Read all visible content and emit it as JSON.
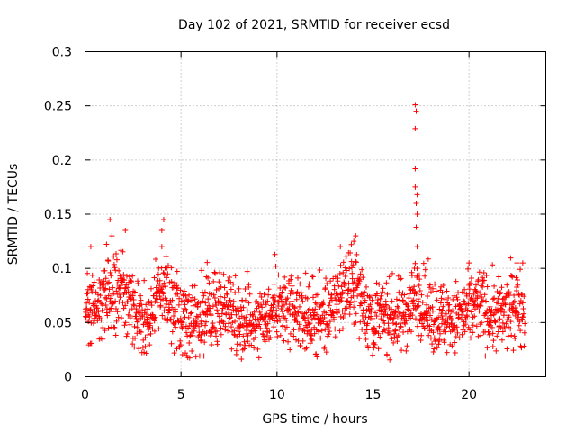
{
  "chart_data": {
    "type": "scatter",
    "title": "Day 102 of 2021, SRMTID for receiver ecsd",
    "xlabel": "GPS time / hours",
    "ylabel": "SRMTID / TECUs",
    "xlim": [
      0,
      24
    ],
    "ylim": [
      0,
      0.3
    ],
    "xticks": [
      0,
      5,
      10,
      15,
      20
    ],
    "xtick_labels": [
      "0",
      "5",
      "10",
      "15",
      "20"
    ],
    "yticks": [
      0,
      0.05,
      0.1,
      0.15,
      0.2,
      0.25,
      0.3
    ],
    "ytick_labels": [
      "0",
      "0.05",
      "0.1",
      "0.15",
      "0.2",
      "0.25",
      "0.3"
    ],
    "grid": true,
    "marker": "+",
    "color": "#ff0000",
    "series": [
      {
        "name": "SRMTID",
        "x_range": [
          0.0,
          22.9
        ],
        "baseline_mean": 0.055,
        "baseline_spread": 0.022,
        "point_count": 1650,
        "notable_points": [
          {
            "x": 0.3,
            "y": 0.12
          },
          {
            "x": 1.3,
            "y": 0.145
          },
          {
            "x": 1.4,
            "y": 0.13
          },
          {
            "x": 2.1,
            "y": 0.135
          },
          {
            "x": 4.1,
            "y": 0.145
          },
          {
            "x": 4.0,
            "y": 0.135
          },
          {
            "x": 4.0,
            "y": 0.12
          },
          {
            "x": 13.3,
            "y": 0.12
          },
          {
            "x": 14.0,
            "y": 0.125
          },
          {
            "x": 14.1,
            "y": 0.13
          },
          {
            "x": 17.2,
            "y": 0.251
          },
          {
            "x": 17.25,
            "y": 0.245
          },
          {
            "x": 17.2,
            "y": 0.229
          },
          {
            "x": 17.2,
            "y": 0.192
          },
          {
            "x": 17.2,
            "y": 0.175
          },
          {
            "x": 17.3,
            "y": 0.168
          },
          {
            "x": 17.25,
            "y": 0.16
          },
          {
            "x": 17.3,
            "y": 0.15
          },
          {
            "x": 17.25,
            "y": 0.138
          },
          {
            "x": 17.3,
            "y": 0.12
          },
          {
            "x": 17.3,
            "y": 0.1
          },
          {
            "x": 20.0,
            "y": 0.105
          },
          {
            "x": 22.5,
            "y": 0.105
          },
          {
            "x": 22.8,
            "y": 0.105
          }
        ]
      }
    ]
  }
}
